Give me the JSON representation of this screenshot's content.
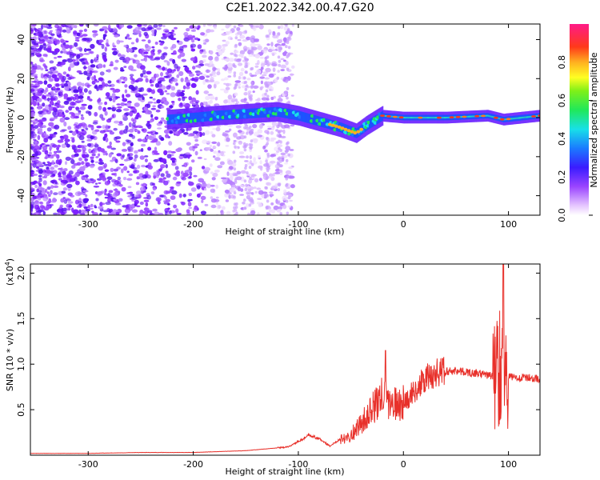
{
  "title": "C2E1.2022.342.00.47.G20",
  "chart_data": [
    {
      "type": "heatmap",
      "xlabel": "Height of straight line (km)",
      "ylabel": "Frequency (Hz)",
      "xlim": [
        -355,
        130
      ],
      "ylim": [
        -50,
        48
      ],
      "x_ticks": [
        -300,
        -200,
        -100,
        0,
        100
      ],
      "y_ticks": [
        -40,
        -20,
        0,
        20,
        40
      ],
      "colorbar": {
        "label": "Normalized spectral amplitude",
        "range": [
          0,
          1
        ],
        "ticks": [
          "0.0",
          "0.2",
          "0.4",
          "0.6",
          "0.8"
        ]
      },
      "ridge": [
        {
          "x": -225,
          "y": -1
        },
        {
          "x": -200,
          "y": 0
        },
        {
          "x": -180,
          "y": 1
        },
        {
          "x": -150,
          "y": 2
        },
        {
          "x": -120,
          "y": 3
        },
        {
          "x": -100,
          "y": 1
        },
        {
          "x": -80,
          "y": -2
        },
        {
          "x": -60,
          "y": -5
        },
        {
          "x": -45,
          "y": -8
        },
        {
          "x": -35,
          "y": -4
        },
        {
          "x": -20,
          "y": 1
        },
        {
          "x": 0,
          "y": 0
        },
        {
          "x": 40,
          "y": 0
        },
        {
          "x": 80,
          "y": 1
        },
        {
          "x": 95,
          "y": -1
        },
        {
          "x": 130,
          "y": 1
        }
      ]
    },
    {
      "type": "line",
      "xlabel": "Height of straight line (km)",
      "ylabel": "SNR (10 * v/v)",
      "y_multiplier": "(x10",
      "y_multiplier_exp": "4",
      "y_multiplier_close": ")",
      "xlim": [
        -355,
        130
      ],
      "ylim": [
        0,
        2.1
      ],
      "x_ticks": [
        -300,
        -200,
        -100,
        0,
        100
      ],
      "y_ticks": [
        0.5,
        1.0,
        1.5,
        2.0
      ],
      "y_tick_labels": [
        "0.5",
        "1.0",
        "1.5",
        "2.0"
      ],
      "color": "#e8302a",
      "series": [
        {
          "x": [
            -355,
            -300,
            -250,
            -200,
            -150,
            -130,
            -110,
            -100,
            -90,
            -80,
            -70,
            -60,
            -50,
            -40,
            -30,
            -20,
            -10,
            0,
            10,
            20,
            30,
            40,
            50,
            60,
            70,
            80,
            88,
            92,
            95,
            98,
            100,
            110,
            120,
            130
          ],
          "values": [
            0.02,
            0.02,
            0.03,
            0.03,
            0.05,
            0.07,
            0.09,
            0.15,
            0.22,
            0.18,
            0.1,
            0.18,
            0.22,
            0.35,
            0.5,
            0.65,
            0.55,
            0.58,
            0.7,
            0.82,
            0.9,
            0.92,
            0.93,
            0.91,
            0.9,
            0.88,
            0.86,
            1.1,
            0.8,
            0.85,
            0.86,
            0.85,
            0.85,
            0.84
          ]
        }
      ]
    }
  ]
}
